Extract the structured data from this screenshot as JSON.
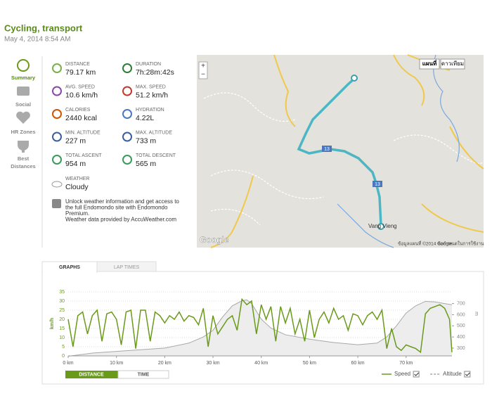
{
  "header": {
    "title": "Cycling, transport",
    "date": "May 4, 2014 8:54 AM"
  },
  "nav": [
    "Summary",
    "Social",
    "HR Zones",
    "Best",
    "Distances"
  ],
  "stats": [
    {
      "label": "DISTANCE",
      "value": "79.17 km"
    },
    {
      "label": "DURATION",
      "value": "7h:28m:42s"
    },
    {
      "label": "AVG. SPEED",
      "value": "10.6 km/h"
    },
    {
      "label": "MAX. SPEED",
      "value": "51.2 km/h"
    },
    {
      "label": "CALORIES",
      "value": "2440 kcal"
    },
    {
      "label": "HYDRATION",
      "value": "4.22L"
    },
    {
      "label": "MIN. ALTITUDE",
      "value": "227 m"
    },
    {
      "label": "MAX. ALTITUDE",
      "value": "733 m"
    },
    {
      "label": "TOTAL ASCENT",
      "value": "954 m"
    },
    {
      "label": "TOTAL DESCENT",
      "value": "565 m"
    }
  ],
  "weather": {
    "label": "WEATHER",
    "value": "Cloudy"
  },
  "notice": [
    "Unlock weather information and get access to",
    "the full Endomondo site with Endomondo",
    "Premium.",
    "Weather data provided by AccuWeather.com"
  ],
  "map": {
    "buttons": [
      "แผนที่",
      "ดาวเทียม"
    ],
    "zoom": [
      "+",
      "−"
    ],
    "road_number": "13",
    "town": "Vang Vieng",
    "brand": "Google",
    "attribution": "ข้อมูลแผนที่ ©2014 Google",
    "terms": "ข้อกำหนดในการใช้งาน"
  },
  "tabs": [
    "GRAPHS",
    "LAP TIMES"
  ],
  "chart_data": {
    "type": "line",
    "xlim": [
      0,
      79.5
    ],
    "xticks": [
      {
        "value": 0,
        "label": "0 km"
      },
      {
        "value": 10,
        "label": "10 km"
      },
      {
        "value": 20,
        "label": "20 km"
      },
      {
        "value": 30,
        "label": "30 km"
      },
      {
        "value": 40,
        "label": "40 km"
      },
      {
        "value": 50,
        "label": "50 km"
      },
      {
        "value": 60,
        "label": "60 km"
      },
      {
        "value": 70,
        "label": "70 km"
      }
    ],
    "ylim": [
      0,
      35
    ],
    "yticks": [
      0,
      5,
      10,
      15,
      20,
      25,
      30,
      35
    ],
    "ylabel": "km/h",
    "y2lim": [
      230,
      805
    ],
    "y2ticks": [
      300,
      400,
      500,
      600,
      700
    ],
    "y2label": "m",
    "grid": true,
    "x_modes": [
      "DISTANCE",
      "TIME"
    ],
    "series": [
      {
        "name": "Speed",
        "color": "#6a9a1a",
        "x": [
          0,
          1,
          2,
          3,
          4,
          5,
          6,
          7,
          8,
          9,
          10,
          11,
          12,
          13,
          14,
          15,
          16,
          17,
          18,
          19,
          20,
          21,
          22,
          23,
          24,
          25,
          26,
          27,
          28,
          29,
          30,
          31,
          32,
          33,
          34,
          35,
          36,
          37,
          38,
          39,
          40,
          41,
          42,
          43,
          44,
          45,
          46,
          47,
          48,
          49,
          50,
          51,
          52,
          53,
          54,
          55,
          56,
          57,
          58,
          59,
          60,
          61,
          62,
          63,
          64,
          65,
          66,
          67,
          68,
          69,
          70,
          71,
          72,
          73,
          74,
          75,
          76,
          77,
          78,
          79,
          79.5
        ],
        "values": [
          20,
          5,
          22,
          24,
          12,
          22,
          25,
          8,
          23,
          24,
          20,
          6,
          24,
          25,
          4,
          25,
          25,
          8,
          24,
          22,
          18,
          22,
          20,
          24,
          19,
          22,
          21,
          17,
          26,
          5,
          22,
          12,
          16,
          20,
          22,
          14,
          31,
          28,
          30,
          12,
          28,
          20,
          27,
          8,
          27,
          18,
          26,
          12,
          20,
          8,
          25,
          10,
          20,
          24,
          18,
          26,
          20,
          22,
          14,
          23,
          22,
          17,
          22,
          24,
          20,
          25,
          4,
          15,
          5,
          3,
          6,
          5,
          4,
          2,
          23,
          26,
          27,
          28,
          26,
          20,
          2
        ]
      },
      {
        "name": "Altitude",
        "color": "#a8a8a8",
        "axis": "y2",
        "x": [
          0,
          5,
          10,
          15,
          20,
          25,
          28,
          30,
          32,
          34,
          36,
          37,
          38,
          40,
          42,
          45,
          50,
          55,
          60,
          64,
          66,
          68,
          70,
          72,
          74,
          76,
          78,
          79.5
        ],
        "values": [
          227,
          255,
          270,
          285,
          300,
          345,
          400,
          460,
          580,
          680,
          725,
          733,
          700,
          560,
          480,
          420,
          380,
          350,
          330,
          345,
          400,
          500,
          615,
          680,
          720,
          715,
          700,
          690
        ]
      }
    ]
  }
}
